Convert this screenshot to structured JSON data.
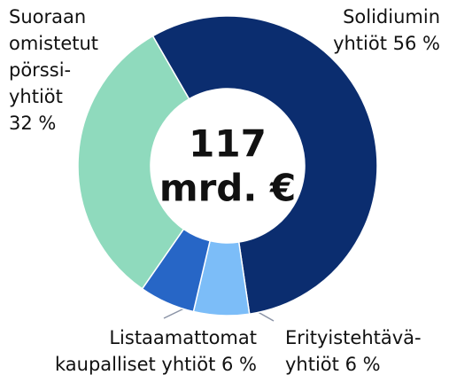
{
  "chart_data": {
    "type": "donut",
    "title_lines": [
      "117",
      "mrd. €"
    ],
    "series": [
      {
        "name_lines": [
          "Solidiumin",
          "yhtiöt"
        ],
        "values": 56,
        "value_labels": "56 %",
        "color": "#0b2d6f"
      },
      {
        "name_lines": [
          "Erityistehtävä-",
          "yhtiöt"
        ],
        "values": 6,
        "value_labels": "6 %",
        "color": "#7cbdf8"
      },
      {
        "name_lines": [
          "Listaamattomat",
          "kaupalliset yhtiöt"
        ],
        "values": 6,
        "value_labels": "6 %",
        "color": "#2766c6"
      },
      {
        "name_lines": [
          "Suoraan",
          "omistetut",
          "pörssi-",
          "yhtiöt"
        ],
        "values": 32,
        "value_labels": "32 %",
        "color": "#8fdabd"
      }
    ]
  }
}
